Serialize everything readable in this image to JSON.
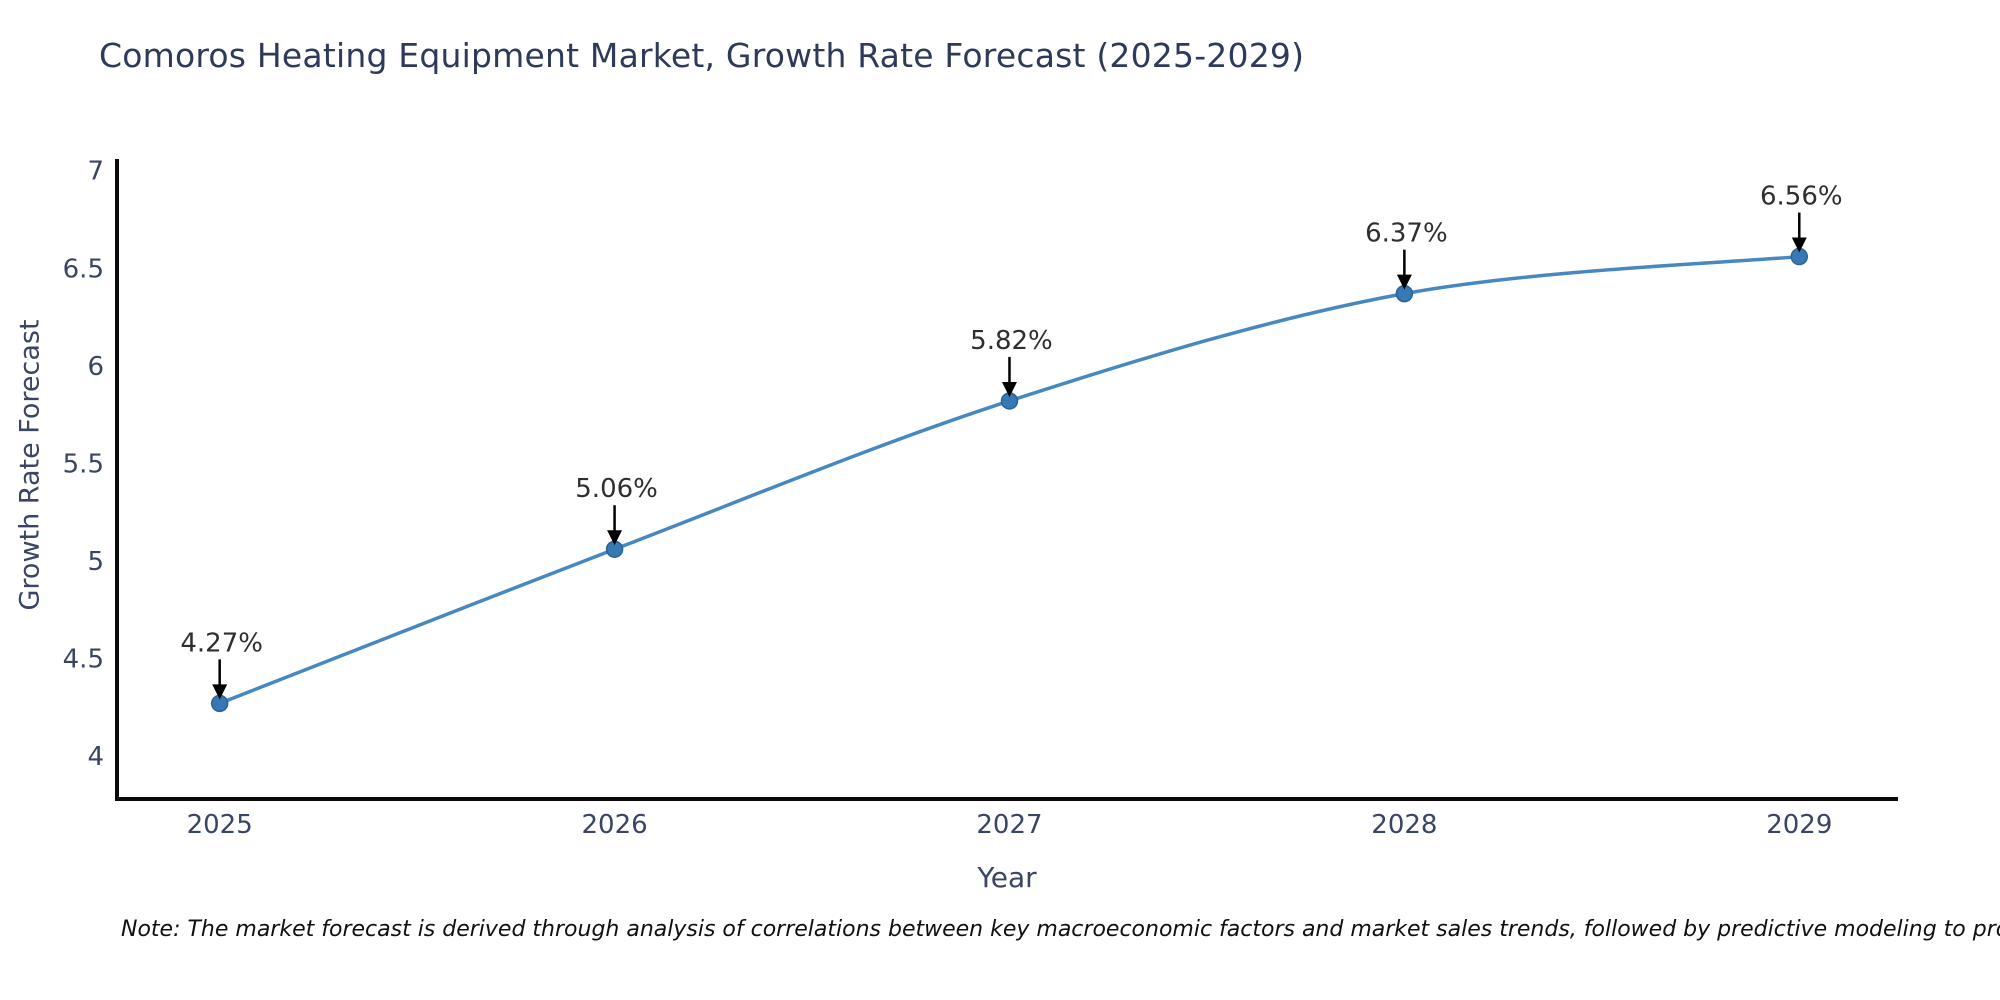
{
  "page": {
    "note": "Note: The market forecast is derived through analysis of correlations between key macroeconomic factors and market sales trends, followed by predictive modeling to project future sales."
  },
  "chart_data": {
    "type": "line",
    "title": "Comoros Heating Equipment Market, Growth Rate Forecast (2025-2029)",
    "xlabel": "Year",
    "ylabel": "Growth Rate Forecast",
    "x": [
      2025,
      2026,
      2027,
      2028,
      2029
    ],
    "x_tick_labels": [
      "2025",
      "2026",
      "2027",
      "2028",
      "2029"
    ],
    "series": [
      {
        "name": "Growth Rate Forecast",
        "values": [
          4.27,
          5.06,
          5.82,
          6.37,
          6.56
        ]
      }
    ],
    "point_labels": [
      "4.27%",
      "5.06%",
      "5.82%",
      "6.37%",
      "6.56%"
    ],
    "y_ticks": [
      4,
      4.5,
      5,
      5.5,
      6,
      6.5,
      7
    ],
    "y_tick_labels": [
      "4",
      "4.5",
      "5",
      "5.5",
      "6",
      "6.5",
      "7"
    ],
    "xlim": [
      2024.74,
      2029.25
    ],
    "ylim": [
      3.78,
      7.06
    ],
    "grid": false,
    "legend": "none",
    "annotation_arrows": true,
    "colors": {
      "line": "#4688bf",
      "marker_fill": "#3679b5",
      "marker_edge": "#2b6395",
      "arrow": "#000000",
      "annotation_text": "#2e2e2e",
      "tick_text": "#3a4563",
      "axis_title_text": "#3a4563",
      "title_text": "#2e3a59",
      "spine": "#0a0a0a"
    }
  }
}
